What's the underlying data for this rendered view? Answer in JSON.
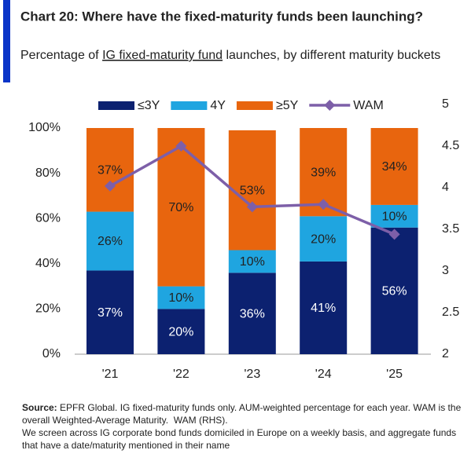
{
  "chart_data": {
    "type": "stacked-bar-line",
    "title": "Chart 20: Where have the fixed-maturity funds been launching?",
    "subtitle": [
      "Percentage of ",
      "IG fixed-maturity fund",
      " launches, by different maturity buckets"
    ],
    "categories": [
      "'21",
      "'22",
      "'23",
      "'24",
      "'25"
    ],
    "series": [
      {
        "name": "≤3Y",
        "color": "#0c2170",
        "values": [
          37,
          20,
          36,
          41,
          56
        ],
        "value_labels": [
          "37%",
          "20%",
          "36%",
          "41%",
          "56%"
        ]
      },
      {
        "name": "4Y",
        "color": "#1fa5e0",
        "values": [
          26,
          10,
          10,
          20,
          10
        ],
        "value_labels": [
          "26%",
          "10%",
          "10%",
          "20%",
          "10%"
        ]
      },
      {
        "name": "≥5Y",
        "color": "#e8650e",
        "values": [
          37,
          70,
          53,
          39,
          34
        ],
        "value_labels": [
          "37%",
          "70%",
          "53%",
          "39%",
          "34%"
        ]
      },
      {
        "name": "WAM",
        "color": "#7d5fa8",
        "values": [
          4.02,
          4.5,
          3.77,
          3.8,
          3.44
        ],
        "axis": "y2"
      }
    ],
    "ylim": [
      0,
      100
    ],
    "yticks": [
      {
        "value": 0,
        "label": "0%"
      },
      {
        "value": 20,
        "label": "20%"
      },
      {
        "value": 40,
        "label": "40%"
      },
      {
        "value": 60,
        "label": "60%"
      },
      {
        "value": 80,
        "label": "80%"
      },
      {
        "value": 100,
        "label": "100%"
      }
    ],
    "y2lim": [
      2,
      5
    ],
    "y2ticks": [
      2,
      2.5,
      3,
      3.5,
      4,
      4.5,
      5
    ],
    "source_label": "Source:",
    "source_text": " EPFR Global. IG fixed-maturity funds only. AUM-weighted percentage for each year. WAM is the overall Weighted-Average Maturity.  WAM (RHS).",
    "note": "We screen across IG corporate bond funds domiciled in Europe on a weekly basis, and aggregate funds that have a date/maturity mentioned in their name"
  }
}
